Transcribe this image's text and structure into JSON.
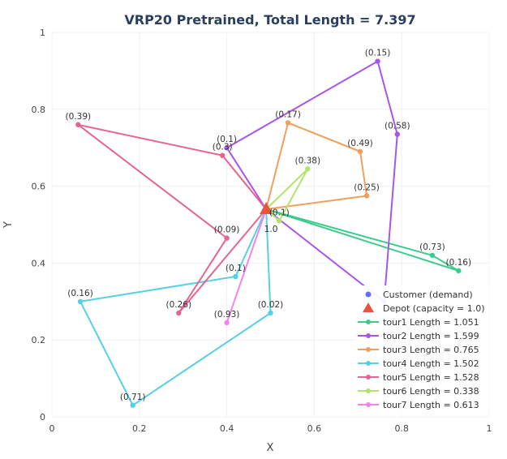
{
  "chart_data": {
    "type": "scatter",
    "title": "VRP20 Pretrained, Total Length = 7.397",
    "xlabel": "X",
    "ylabel": "Y",
    "xlim": [
      0,
      1
    ],
    "ylim": [
      0,
      1
    ],
    "xticks": [
      "0",
      "0.2",
      "0.4",
      "0.6",
      "0.8",
      "1"
    ],
    "yticks": [
      "0",
      "0.2",
      "0.4",
      "0.6",
      "0.8",
      "1"
    ],
    "grid": true,
    "legend_position": "bottom-right",
    "depot": {
      "x": 0.49,
      "y": 0.54,
      "label": "1.0",
      "legend": "Depot (capacity = 1.0)",
      "color": "#e8553e"
    },
    "customer_legend": "Customer (demand)",
    "customer_color": "#636efa",
    "tours": [
      {
        "name": "tour1 Length = 1.051",
        "color": "#3ccb8b",
        "points": [
          {
            "x": 0.49,
            "y": 0.54
          },
          {
            "x": 0.87,
            "y": 0.42,
            "label": "(0.73)"
          },
          {
            "x": 0.93,
            "y": 0.38,
            "label": "(0.16)"
          },
          {
            "x": 0.49,
            "y": 0.54
          }
        ]
      },
      {
        "name": "tour2 Length = 1.599",
        "color": "#a855e8",
        "points": [
          {
            "x": 0.49,
            "y": 0.54
          },
          {
            "x": 0.4,
            "y": 0.7,
            "label": "(0.1)"
          },
          {
            "x": 0.745,
            "y": 0.925,
            "label": "(0.15)"
          },
          {
            "x": 0.79,
            "y": 0.735,
            "label": "(0.58)"
          },
          {
            "x": 0.76,
            "y": 0.3
          },
          {
            "x": 0.49,
            "y": 0.54
          }
        ]
      },
      {
        "name": "tour3 Length = 0.765",
        "color": "#f0a05a",
        "points": [
          {
            "x": 0.49,
            "y": 0.54
          },
          {
            "x": 0.54,
            "y": 0.765,
            "label": "(0.17)"
          },
          {
            "x": 0.705,
            "y": 0.69,
            "label": "(0.49)"
          },
          {
            "x": 0.72,
            "y": 0.575,
            "label": "(0.25)"
          },
          {
            "x": 0.49,
            "y": 0.54
          }
        ]
      },
      {
        "name": "tour4 Length = 1.502",
        "color": "#55d0e6",
        "points": [
          {
            "x": 0.49,
            "y": 0.54
          },
          {
            "x": 0.42,
            "y": 0.365,
            "label": "(0.1)"
          },
          {
            "x": 0.065,
            "y": 0.3,
            "label": "(0.16)"
          },
          {
            "x": 0.185,
            "y": 0.03,
            "label": "(0.71)"
          },
          {
            "x": 0.5,
            "y": 0.27,
            "label": "(0.02)"
          },
          {
            "x": 0.49,
            "y": 0.54
          }
        ]
      },
      {
        "name": "tour5 Length = 1.528",
        "color": "#e6658f",
        "points": [
          {
            "x": 0.49,
            "y": 0.54
          },
          {
            "x": 0.39,
            "y": 0.68,
            "label": "(0.3)"
          },
          {
            "x": 0.06,
            "y": 0.76,
            "label": "(0.39)"
          },
          {
            "x": 0.4,
            "y": 0.465,
            "label": "(0.09)"
          },
          {
            "x": 0.29,
            "y": 0.27,
            "label": "(0.26)"
          },
          {
            "x": 0.49,
            "y": 0.54
          }
        ]
      },
      {
        "name": "tour6 Length = 0.338",
        "color": "#b3e36b",
        "points": [
          {
            "x": 0.49,
            "y": 0.54
          },
          {
            "x": 0.585,
            "y": 0.645,
            "label": "(0.38)"
          },
          {
            "x": 0.52,
            "y": 0.51,
            "label": "(0.1)"
          },
          {
            "x": 0.49,
            "y": 0.54
          }
        ]
      },
      {
        "name": "tour7 Length = 0.613",
        "color": "#f582f0",
        "points": [
          {
            "x": 0.49,
            "y": 0.54
          },
          {
            "x": 0.4,
            "y": 0.245,
            "label": "(0.93)"
          },
          {
            "x": 0.49,
            "y": 0.54
          }
        ]
      }
    ]
  }
}
